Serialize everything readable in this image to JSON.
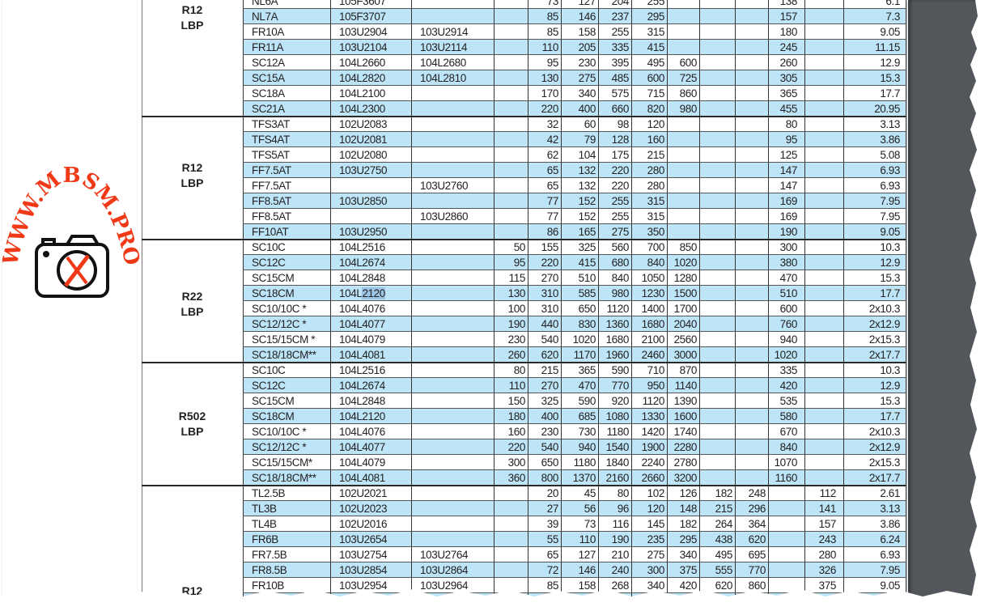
{
  "watermark": {
    "text": "WWW.MBSM.PRO",
    "color": "#f03a17"
  },
  "colors": {
    "row_alt": "#bde4f7",
    "viewer_background": "#53575b"
  },
  "sections": [
    {
      "label": [
        "R12",
        "LBP"
      ],
      "rows": [
        {
          "name": "NL6A",
          "code1": "105F3607",
          "code2": "",
          "values": [
            "",
            "73",
            "127",
            "204",
            "255",
            "",
            "",
            "",
            "138",
            "",
            "6.1"
          ]
        },
        {
          "name": "NL7A",
          "code1": "105F3707",
          "code2": "",
          "values": [
            "",
            "85",
            "146",
            "237",
            "295",
            "",
            "",
            "",
            "157",
            "",
            "7.3"
          ]
        },
        {
          "name": "FR10A",
          "code1": "103U2904",
          "code2": "103U2914",
          "values": [
            "",
            "85",
            "158",
            "255",
            "315",
            "",
            "",
            "",
            "180",
            "",
            "9.05"
          ]
        },
        {
          "name": "FR11A",
          "code1": "103U2104",
          "code2": "103U2114",
          "values": [
            "",
            "110",
            "205",
            "335",
            "415",
            "",
            "",
            "",
            "245",
            "",
            "11.15"
          ]
        },
        {
          "name": "SC12A",
          "code1": "104L2660",
          "code2": "104L2680",
          "values": [
            "",
            "95",
            "230",
            "395",
            "495",
            "600",
            "",
            "",
            "260",
            "",
            "12.9"
          ]
        },
        {
          "name": "SC15A",
          "code1": "104L2820",
          "code2": "104L2810",
          "values": [
            "",
            "130",
            "275",
            "485",
            "600",
            "725",
            "",
            "",
            "305",
            "",
            "15.3"
          ]
        },
        {
          "name": "SC18A",
          "code1": "104L2100",
          "code2": "",
          "values": [
            "",
            "170",
            "340",
            "575",
            "715",
            "860",
            "",
            "",
            "365",
            "",
            "17.7"
          ]
        },
        {
          "name": "SC21A",
          "code1": "104L2300",
          "code2": "",
          "values": [
            "",
            "220",
            "400",
            "660",
            "820",
            "980",
            "",
            "",
            "455",
            "",
            "20.95"
          ]
        }
      ]
    },
    {
      "label": [
        "R12",
        "LBP"
      ],
      "rows": [
        {
          "name": "TFS3AT",
          "code1": "102U2083",
          "code2": "",
          "values": [
            "",
            "32",
            "60",
            "98",
            "120",
            "",
            "",
            "",
            "80",
            "",
            "3.13"
          ]
        },
        {
          "name": "TFS4AT",
          "code1": "102U2081",
          "code2": "",
          "values": [
            "",
            "42",
            "79",
            "128",
            "160",
            "",
            "",
            "",
            "95",
            "",
            "3.86"
          ]
        },
        {
          "name": "TFS5AT",
          "code1": "102U2080",
          "code2": "",
          "values": [
            "",
            "62",
            "104",
            "175",
            "215",
            "",
            "",
            "",
            "125",
            "",
            "5.08"
          ]
        },
        {
          "name": "FF7.5AT",
          "code1": "103U2750",
          "code2": "",
          "values": [
            "",
            "65",
            "132",
            "220",
            "280",
            "",
            "",
            "",
            "147",
            "",
            "6.93"
          ]
        },
        {
          "name": "FF7.5AT",
          "code1": "",
          "code2": "103U2760",
          "values": [
            "",
            "65",
            "132",
            "220",
            "280",
            "",
            "",
            "",
            "147",
            "",
            "6.93"
          ]
        },
        {
          "name": "FF8.5AT",
          "code1": "103U2850",
          "code2": "",
          "values": [
            "",
            "77",
            "152",
            "255",
            "315",
            "",
            "",
            "",
            "169",
            "",
            "7.95"
          ]
        },
        {
          "name": "FF8.5AT",
          "code1": "",
          "code2": "103U2860",
          "values": [
            "",
            "77",
            "152",
            "255",
            "315",
            "",
            "",
            "",
            "169",
            "",
            "7.95"
          ]
        },
        {
          "name": "FF10AT",
          "code1": "103U2950",
          "code2": "",
          "values": [
            "",
            "86",
            "165",
            "275",
            "350",
            "",
            "",
            "",
            "190",
            "",
            "9.05"
          ]
        }
      ]
    },
    {
      "label": [
        "R22",
        "LBP"
      ],
      "rows": [
        {
          "name": "SC10C",
          "code1": "104L2516",
          "code2": "",
          "values": [
            "50",
            "155",
            "325",
            "560",
            "700",
            "850",
            "",
            "",
            "300",
            "",
            "10.3"
          ]
        },
        {
          "name": "SC12C",
          "code1": "104L2674",
          "code2": "",
          "values": [
            "95",
            "220",
            "415",
            "680",
            "840",
            "1020",
            "",
            "",
            "380",
            "",
            "12.9"
          ]
        },
        {
          "name": "SC15CM",
          "code1": "104L2848",
          "code2": "",
          "values": [
            "115",
            "270",
            "510",
            "840",
            "1050",
            "1280",
            "",
            "",
            "470",
            "",
            "15.3"
          ]
        },
        {
          "name": "SC18CM",
          "code1": "104L2120",
          "code2": "",
          "selected": "2120",
          "values": [
            "130",
            "310",
            "585",
            "980",
            "1230",
            "1500",
            "",
            "",
            "510",
            "",
            "17.7"
          ]
        },
        {
          "name": "SC10/10C *",
          "code1": "104L4076",
          "code2": "",
          "values": [
            "100",
            "310",
            "650",
            "1120",
            "1400",
            "1700",
            "",
            "",
            "600",
            "",
            "2x10.3"
          ]
        },
        {
          "name": "SC12/12C *",
          "code1": "104L4077",
          "code2": "",
          "values": [
            "190",
            "440",
            "830",
            "1360",
            "1680",
            "2040",
            "",
            "",
            "760",
            "",
            "2x12.9"
          ]
        },
        {
          "name": "SC15/15CM *",
          "code1": "104L4079",
          "code2": "",
          "values": [
            "230",
            "540",
            "1020",
            "1680",
            "2100",
            "2560",
            "",
            "",
            "940",
            "",
            "2x15.3"
          ]
        },
        {
          "name": "SC18/18CM**",
          "code1": "104L4081",
          "code2": "",
          "values": [
            "260",
            "620",
            "1170",
            "1960",
            "2460",
            "3000",
            "",
            "",
            "1020",
            "",
            "2x17.7"
          ]
        }
      ]
    },
    {
      "label": [
        "R502",
        "LBP"
      ],
      "rows": [
        {
          "name": "SC10C",
          "code1": "104L2516",
          "code2": "",
          "values": [
            "80",
            "215",
            "365",
            "590",
            "710",
            "870",
            "",
            "",
            "335",
            "",
            "10.3"
          ]
        },
        {
          "name": "SC12C",
          "code1": "104L2674",
          "code2": "",
          "values": [
            "110",
            "270",
            "470",
            "770",
            "950",
            "1140",
            "",
            "",
            "420",
            "",
            "12.9"
          ]
        },
        {
          "name": "SC15CM",
          "code1": "104L2848",
          "code2": "",
          "values": [
            "150",
            "325",
            "590",
            "920",
            "1120",
            "1390",
            "",
            "",
            "535",
            "",
            "15.3"
          ]
        },
        {
          "name": "SC18CM",
          "code1": "104L2120",
          "code2": "",
          "values": [
            "180",
            "400",
            "685",
            "1080",
            "1330",
            "1600",
            "",
            "",
            "580",
            "",
            "17.7"
          ]
        },
        {
          "name": "SC10/10C *",
          "code1": "104L4076",
          "code2": "",
          "values": [
            "160",
            "230",
            "730",
            "1180",
            "1420",
            "1740",
            "",
            "",
            "670",
            "",
            "2x10.3"
          ]
        },
        {
          "name": "SC12/12C *",
          "code1": "104L4077",
          "code2": "",
          "values": [
            "220",
            "540",
            "940",
            "1540",
            "1900",
            "2280",
            "",
            "",
            "840",
            "",
            "2x12.9"
          ]
        },
        {
          "name": "SC15/15CM*",
          "code1": "104L4079",
          "code2": "",
          "values": [
            "300",
            "650",
            "1180",
            "1840",
            "2240",
            "2780",
            "",
            "",
            "1070",
            "",
            "2x15.3"
          ]
        },
        {
          "name": "SC18/18CM**",
          "code1": "104L4081",
          "code2": "",
          "values": [
            "360",
            "800",
            "1370",
            "2160",
            "2660",
            "3200",
            "",
            "",
            "1160",
            "",
            "2x17.7"
          ]
        }
      ]
    },
    {
      "label": [
        "R12",
        ""
      ],
      "rows": [
        {
          "name": "TL2.5B",
          "code1": "102U2021",
          "code2": "",
          "values": [
            "",
            "20",
            "45",
            "80",
            "102",
            "126",
            "182",
            "248",
            "",
            "112",
            "2.61"
          ]
        },
        {
          "name": "TL3B",
          "code1": "102U2023",
          "code2": "",
          "values": [
            "",
            "27",
            "56",
            "96",
            "120",
            "148",
            "215",
            "296",
            "",
            "141",
            "3.13"
          ]
        },
        {
          "name": "TL4B",
          "code1": "102U2016",
          "code2": "",
          "values": [
            "",
            "39",
            "73",
            "116",
            "145",
            "182",
            "264",
            "364",
            "",
            "157",
            "3.86"
          ]
        },
        {
          "name": "FR6B",
          "code1": "103U2654",
          "code2": "",
          "values": [
            "",
            "55",
            "110",
            "190",
            "235",
            "295",
            "438",
            "620",
            "",
            "243",
            "6.24"
          ]
        },
        {
          "name": "FR7.5B",
          "code1": "103U2754",
          "code2": "103U2764",
          "values": [
            "",
            "65",
            "127",
            "210",
            "275",
            "340",
            "495",
            "695",
            "",
            "280",
            "6.93"
          ]
        },
        {
          "name": "FR8.5B",
          "code1": "103U2854",
          "code2": "103U2864",
          "values": [
            "",
            "72",
            "146",
            "240",
            "300",
            "375",
            "555",
            "770",
            "",
            "326",
            "7.95"
          ]
        },
        {
          "name": "FR10B",
          "code1": "103U2954",
          "code2": "103U2964",
          "values": [
            "",
            "85",
            "158",
            "268",
            "340",
            "420",
            "620",
            "860",
            "",
            "375",
            "9.05"
          ]
        },
        {
          "name": "",
          "code1": "",
          "code2": "",
          "values": [
            "",
            "",
            "",
            "",
            "",
            "",
            "",
            "",
            "",
            "",
            ""
          ]
        }
      ]
    }
  ]
}
